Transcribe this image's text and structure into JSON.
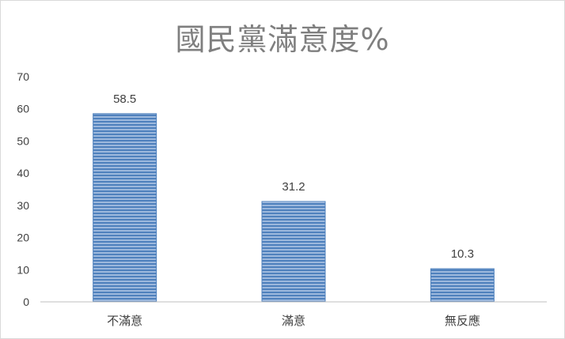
{
  "chart_data": {
    "type": "bar",
    "title": "國民黨滿意度%",
    "categories": [
      "不滿意",
      "滿意",
      "無反應"
    ],
    "values": [
      58.5,
      31.2,
      10.3
    ],
    "data_labels": [
      "58.5",
      "31.2",
      "10.3"
    ],
    "xlabel": "",
    "ylabel": "",
    "ylim": [
      0,
      70
    ],
    "yticks": [
      0,
      10,
      20,
      30,
      40,
      50,
      60,
      70
    ],
    "grid": false,
    "legend": "none",
    "bar_color": "#4f81bd",
    "bar_stripe_color": "#ffffff"
  }
}
